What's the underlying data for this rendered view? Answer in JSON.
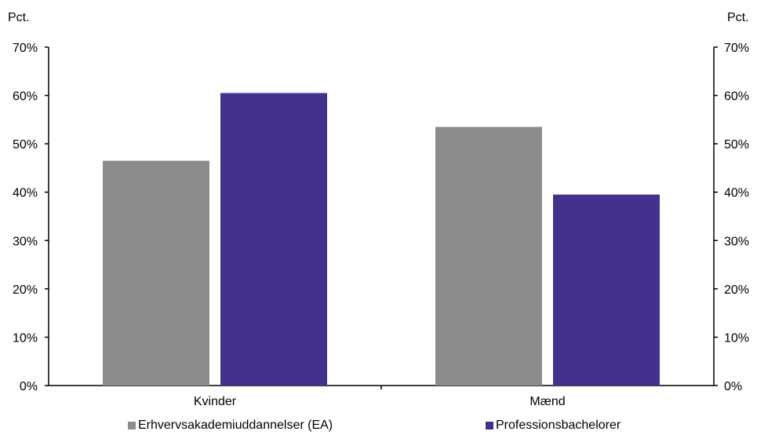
{
  "chart_data": {
    "type": "bar",
    "unit_left": "Pct.",
    "unit_right": "Pct.",
    "categories": [
      "Kvinder",
      "Mænd"
    ],
    "series": [
      {
        "name": "Erhvervsakademiuddannelser (EA)",
        "color": "#8c8c8c",
        "values": [
          46.5,
          53.5
        ]
      },
      {
        "name": "Professionsbachelorer",
        "color": "#43318c",
        "values": [
          60.5,
          39.5
        ]
      }
    ],
    "y_ticks": [
      "0%",
      "10%",
      "20%",
      "30%",
      "40%",
      "50%",
      "60%",
      "70%"
    ],
    "ylim": [
      0,
      70
    ],
    "grid": false,
    "legend_position": "bottom"
  }
}
